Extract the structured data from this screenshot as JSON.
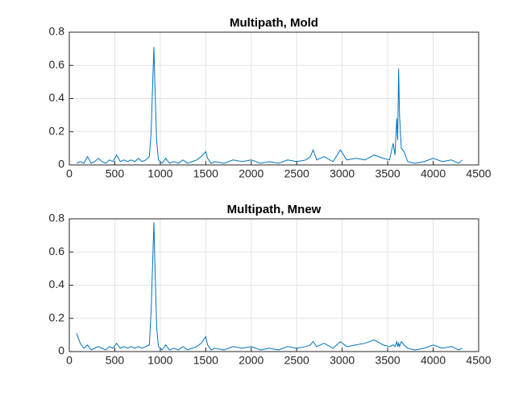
{
  "chart_data": [
    {
      "type": "line",
      "title": "Multipath, Mold",
      "color": "#0072bd",
      "grid": true,
      "xlim": [
        0,
        4500
      ],
      "xticks": [
        0,
        500,
        1000,
        1500,
        2000,
        2500,
        3000,
        3500,
        4000,
        4500
      ],
      "ylim": [
        0,
        0.8
      ],
      "yticks": [
        0,
        0.2,
        0.4,
        0.6,
        0.8
      ],
      "x": [
        80,
        120,
        160,
        200,
        240,
        280,
        320,
        360,
        400,
        440,
        480,
        520,
        560,
        600,
        640,
        680,
        720,
        760,
        800,
        840,
        880,
        900,
        920,
        930,
        940,
        960,
        980,
        1020,
        1060,
        1100,
        1150,
        1200,
        1250,
        1300,
        1350,
        1400,
        1450,
        1500,
        1520,
        1560,
        1600,
        1700,
        1800,
        1900,
        2000,
        2100,
        2200,
        2300,
        2400,
        2500,
        2600,
        2650,
        2680,
        2720,
        2800,
        2900,
        2980,
        3050,
        3150,
        3250,
        3350,
        3450,
        3520,
        3560,
        3580,
        3600,
        3610,
        3620,
        3630,
        3650,
        3680,
        3720,
        3800,
        3900,
        4000,
        4100,
        4200,
        4280,
        4320
      ],
      "values": [
        0.01,
        0.02,
        0.01,
        0.05,
        0.01,
        0.02,
        0.04,
        0.02,
        0.01,
        0.03,
        0.02,
        0.06,
        0.02,
        0.03,
        0.02,
        0.03,
        0.02,
        0.04,
        0.02,
        0.03,
        0.05,
        0.2,
        0.55,
        0.71,
        0.5,
        0.15,
        0.03,
        0.01,
        0.04,
        0.01,
        0.02,
        0.01,
        0.03,
        0.01,
        0.02,
        0.03,
        0.05,
        0.08,
        0.04,
        0.01,
        0.02,
        0.01,
        0.03,
        0.02,
        0.03,
        0.01,
        0.02,
        0.01,
        0.03,
        0.02,
        0.03,
        0.05,
        0.09,
        0.03,
        0.05,
        0.02,
        0.09,
        0.03,
        0.04,
        0.03,
        0.06,
        0.04,
        0.03,
        0.13,
        0.06,
        0.28,
        0.15,
        0.58,
        0.3,
        0.1,
        0.08,
        0.02,
        0.01,
        0.02,
        0.04,
        0.02,
        0.03,
        0.01,
        0.03
      ]
    },
    {
      "type": "line",
      "title": "Multipath, Mnew",
      "color": "#0072bd",
      "grid": true,
      "xlim": [
        0,
        4500
      ],
      "xticks": [
        0,
        500,
        1000,
        1500,
        2000,
        2500,
        3000,
        3500,
        4000,
        4500
      ],
      "ylim": [
        0,
        0.8
      ],
      "yticks": [
        0,
        0.2,
        0.4,
        0.6,
        0.8
      ],
      "x": [
        80,
        120,
        160,
        200,
        240,
        280,
        320,
        360,
        400,
        440,
        480,
        520,
        560,
        600,
        640,
        680,
        720,
        760,
        800,
        840,
        880,
        900,
        920,
        930,
        940,
        960,
        980,
        1020,
        1060,
        1100,
        1150,
        1200,
        1250,
        1300,
        1350,
        1400,
        1450,
        1500,
        1520,
        1560,
        1600,
        1700,
        1800,
        1900,
        2000,
        2100,
        2200,
        2300,
        2400,
        2500,
        2600,
        2650,
        2680,
        2720,
        2800,
        2900,
        2980,
        3050,
        3150,
        3250,
        3350,
        3450,
        3520,
        3560,
        3580,
        3600,
        3610,
        3620,
        3630,
        3650,
        3680,
        3720,
        3800,
        3900,
        4000,
        4100,
        4200,
        4280,
        4320
      ],
      "values": [
        0.11,
        0.05,
        0.02,
        0.04,
        0.01,
        0.02,
        0.03,
        0.02,
        0.01,
        0.03,
        0.02,
        0.05,
        0.02,
        0.03,
        0.02,
        0.03,
        0.02,
        0.03,
        0.02,
        0.03,
        0.04,
        0.25,
        0.6,
        0.78,
        0.55,
        0.15,
        0.03,
        0.01,
        0.04,
        0.01,
        0.02,
        0.01,
        0.03,
        0.01,
        0.02,
        0.03,
        0.05,
        0.09,
        0.04,
        0.01,
        0.02,
        0.01,
        0.03,
        0.02,
        0.03,
        0.01,
        0.02,
        0.01,
        0.03,
        0.02,
        0.03,
        0.04,
        0.06,
        0.03,
        0.05,
        0.02,
        0.06,
        0.03,
        0.04,
        0.05,
        0.07,
        0.04,
        0.03,
        0.04,
        0.03,
        0.06,
        0.03,
        0.05,
        0.03,
        0.06,
        0.04,
        0.02,
        0.01,
        0.02,
        0.04,
        0.02,
        0.03,
        0.01,
        0.02
      ]
    }
  ]
}
